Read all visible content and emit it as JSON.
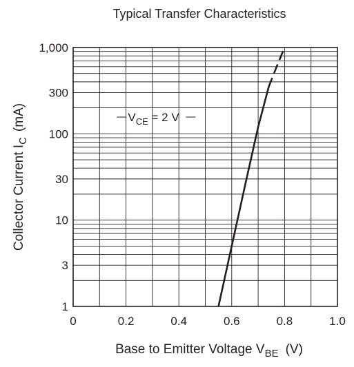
{
  "chart_data": {
    "type": "line",
    "title": "Typical Transfer Characteristics",
    "xlabel": {
      "main": "Base to Emitter Voltage  V",
      "sub": "BE",
      "unit": "(V)"
    },
    "ylabel": {
      "main": "Collector Current  I",
      "sub": "C",
      "unit": "(mA)"
    },
    "x_scale": "linear",
    "y_scale": "log",
    "xlim": [
      0,
      1.0
    ],
    "ylim": [
      1,
      1000
    ],
    "grid": true,
    "x_ticks": [
      {
        "value": 0,
        "label": "0"
      },
      {
        "value": 0.2,
        "label": "0.2"
      },
      {
        "value": 0.4,
        "label": "0.4"
      },
      {
        "value": 0.6,
        "label": "0.6"
      },
      {
        "value": 0.8,
        "label": "0.8"
      },
      {
        "value": 1.0,
        "label": "1.0"
      }
    ],
    "y_ticks": [
      {
        "value": 1,
        "label": "1"
      },
      {
        "value": 3,
        "label": "3"
      },
      {
        "value": 10,
        "label": "10"
      },
      {
        "value": 30,
        "label": "30"
      },
      {
        "value": 100,
        "label": "100"
      },
      {
        "value": 300,
        "label": "300"
      },
      {
        "value": 1000,
        "label": "1,000"
      }
    ],
    "series": [
      {
        "name": "",
        "style": "solid",
        "points": [
          [
            0.55,
            1
          ],
          [
            0.6,
            5
          ],
          [
            0.65,
            25
          ],
          [
            0.7,
            120
          ],
          [
            0.74,
            350
          ]
        ]
      },
      {
        "name": "",
        "style": "dashed",
        "points": [
          [
            0.74,
            350
          ],
          [
            0.77,
            600
          ],
          [
            0.8,
            1000
          ]
        ]
      }
    ],
    "annotations": [
      {
        "text_main": "V",
        "text_sub": "CE",
        "text_rest": " = 2 V",
        "x": 0.39,
        "y": 140
      }
    ],
    "colors": {
      "line": "#231f20",
      "grid": "#231f20",
      "background": "#ffffff"
    }
  }
}
